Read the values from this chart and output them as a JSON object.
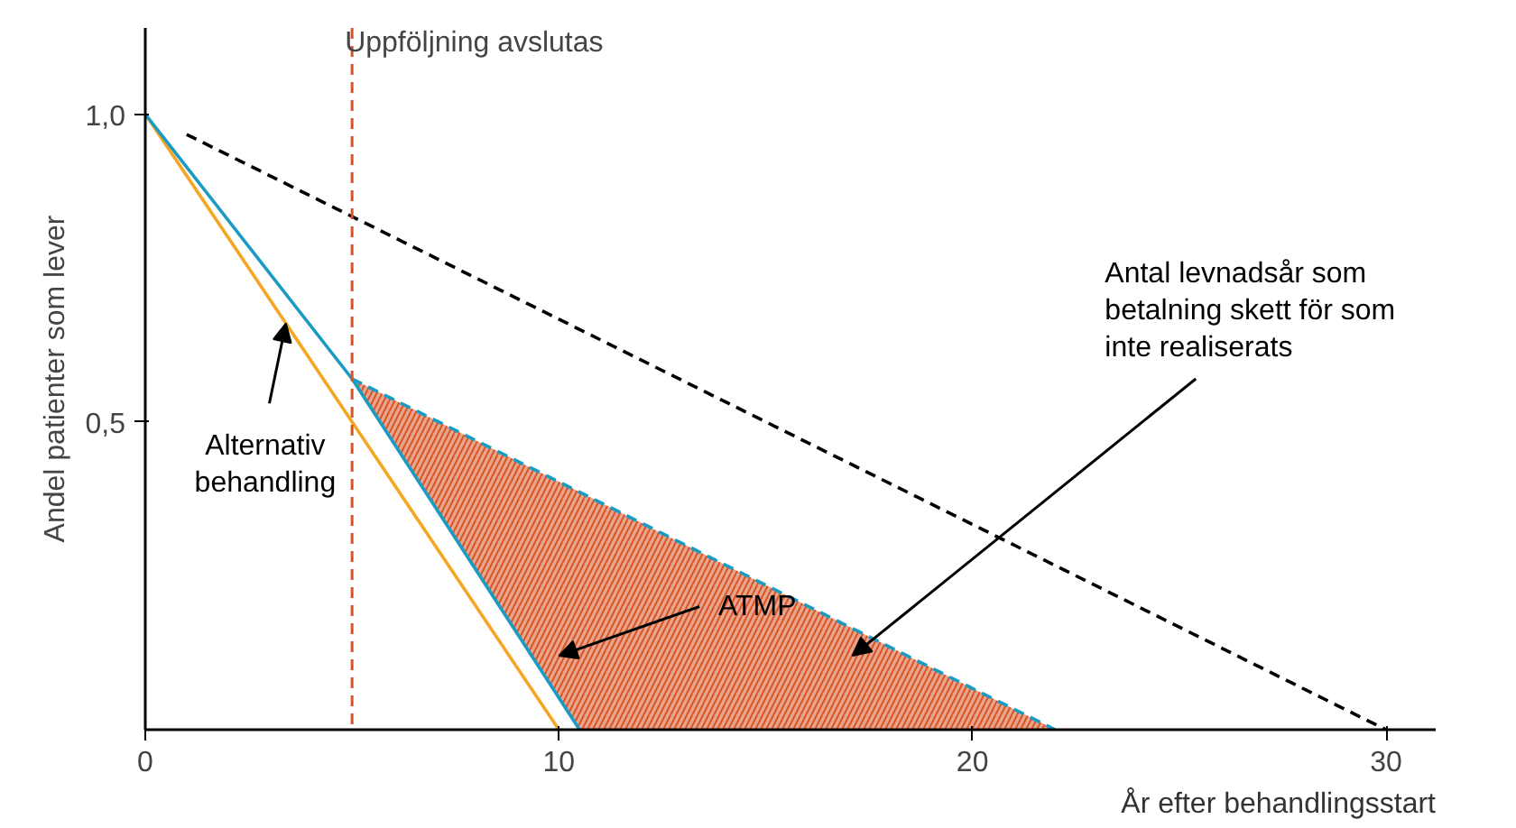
{
  "chart_data": {
    "type": "line",
    "xlabel": "År efter behandlingsstart",
    "ylabel": "Andel patienter som lever",
    "xlim": [
      0,
      31.2
    ],
    "ylim": [
      0,
      1.14
    ],
    "xticks": [
      0,
      10,
      20,
      30
    ],
    "yticks": [
      {
        "value": 0.5,
        "label": "0,5"
      },
      {
        "value": 1.0,
        "label": "1,0"
      }
    ],
    "grid": false,
    "legend": false,
    "series": [
      {
        "name": "Alternativ behandling",
        "color": "#f5a623",
        "x": [
          0,
          10
        ],
        "values": [
          1.0,
          0.0
        ],
        "line_style": "solid"
      },
      {
        "name": "ATMP",
        "color": "#1a9bc4",
        "x": [
          0,
          5,
          10.5
        ],
        "values": [
          1.0,
          0.57,
          0.0
        ],
        "line_style": "solid"
      },
      {
        "type": "line",
        "color": "#1a9bc4",
        "x": [
          5,
          10.5,
          22
        ],
        "values": [
          0.57,
          0.386,
          0.0
        ],
        "lower": [
          0.57,
          0.0,
          0.0
        ],
        "upper": [
          0.57,
          0.386,
          0.0
        ],
        "line_style": "dashed"
      },
      {
        "type": "line",
        "color": "#000000",
        "x": [
          1,
          30
        ],
        "values": [
          0.967,
          0.0
        ],
        "line_style": "dashed"
      }
    ],
    "ref_lines": [
      {
        "axis": "x",
        "value": 5,
        "label": "Uppföljning avslutas",
        "color": "#d9531e",
        "line_style": "dashed"
      }
    ],
    "annotations": [
      "Antal levnadsår som betalning skett för som inte realiserats"
    ]
  }
}
